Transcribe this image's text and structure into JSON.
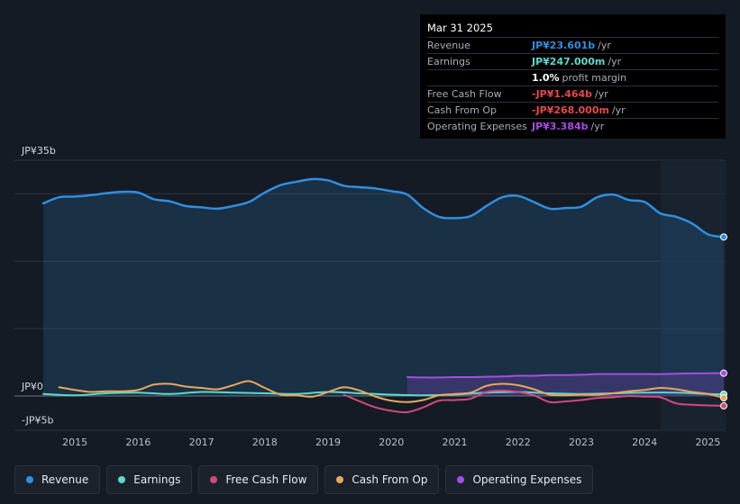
{
  "chart_data": {
    "type": "area",
    "title": "",
    "xlabel": "",
    "ylabel": "",
    "ylim": [
      -5,
      35
    ],
    "y_tick_labels": [
      {
        "value": 35,
        "label": "JP¥35b"
      },
      {
        "value": 0,
        "label": "JP¥0"
      },
      {
        "value": -5,
        "label": "-JP¥5b"
      }
    ],
    "x_ticks": [
      {
        "value": 2015,
        "label": "2015"
      },
      {
        "value": 2016,
        "label": "2016"
      },
      {
        "value": 2017,
        "label": "2017"
      },
      {
        "value": 2018,
        "label": "2018"
      },
      {
        "value": 2019,
        "label": "2019"
      },
      {
        "value": 2020,
        "label": "2020"
      },
      {
        "value": 2021,
        "label": "2021"
      },
      {
        "value": 2022,
        "label": "2022"
      },
      {
        "value": 2023,
        "label": "2023"
      },
      {
        "value": 2024,
        "label": "2024"
      },
      {
        "value": 2025,
        "label": "2025"
      }
    ],
    "xlim": [
      2014.0,
      2025.25
    ],
    "forecast_start": 2024.25,
    "series": [
      {
        "name": "Revenue",
        "color": "#2f8fe0",
        "filled": true,
        "x": [
          2014.5,
          2014.75,
          2015.0,
          2015.25,
          2015.5,
          2015.75,
          2016.0,
          2016.25,
          2016.5,
          2016.75,
          2017.0,
          2017.25,
          2017.5,
          2017.75,
          2018.0,
          2018.25,
          2018.5,
          2018.75,
          2019.0,
          2019.25,
          2019.5,
          2019.75,
          2020.0,
          2020.25,
          2020.5,
          2020.75,
          2021.0,
          2021.25,
          2021.5,
          2021.75,
          2022.0,
          2022.25,
          2022.5,
          2022.75,
          2023.0,
          2023.25,
          2023.5,
          2023.75,
          2024.0,
          2024.25,
          2024.5,
          2024.75,
          2025.0,
          2025.25
        ],
        "values": [
          28.6,
          29.5,
          29.6,
          29.8,
          30.1,
          30.3,
          30.2,
          29.2,
          28.9,
          28.2,
          28.0,
          27.8,
          28.2,
          28.8,
          30.2,
          31.3,
          31.8,
          32.2,
          32.0,
          31.2,
          31.0,
          30.8,
          30.4,
          29.9,
          27.9,
          26.6,
          26.4,
          26.7,
          28.2,
          29.5,
          29.7,
          28.8,
          27.8,
          27.9,
          28.1,
          29.5,
          29.9,
          29.1,
          28.8,
          27.1,
          26.6,
          25.6,
          24.0,
          23.6
        ]
      },
      {
        "name": "Earnings",
        "color": "#5fd8c9",
        "filled": false,
        "x": [
          2014.5,
          2015.0,
          2015.5,
          2016.0,
          2016.5,
          2017.0,
          2017.5,
          2018.0,
          2018.5,
          2019.0,
          2019.5,
          2020.0,
          2020.5,
          2021.0,
          2021.5,
          2022.0,
          2022.5,
          2023.0,
          2023.5,
          2024.0,
          2024.5,
          2025.0,
          2025.25
        ],
        "values": [
          0.3,
          0.1,
          0.4,
          0.5,
          0.3,
          0.6,
          0.5,
          0.4,
          0.3,
          0.6,
          0.4,
          0.2,
          0.1,
          0.2,
          0.5,
          0.6,
          0.4,
          0.3,
          0.4,
          0.5,
          0.5,
          0.3,
          0.25
        ]
      },
      {
        "name": "Free Cash Flow",
        "color": "#d14a7d",
        "filled": false,
        "x": [
          2019.25,
          2019.5,
          2019.75,
          2020.0,
          2020.25,
          2020.5,
          2020.75,
          2021.0,
          2021.25,
          2021.5,
          2021.75,
          2022.0,
          2022.25,
          2022.5,
          2022.75,
          2023.0,
          2023.25,
          2023.5,
          2023.75,
          2024.0,
          2024.25,
          2024.5,
          2024.75,
          2025.0,
          2025.25
        ],
        "values": [
          0.2,
          -0.8,
          -1.7,
          -2.2,
          -2.4,
          -1.7,
          -0.7,
          -0.6,
          -0.4,
          0.6,
          0.8,
          0.6,
          0.1,
          -0.9,
          -0.8,
          -0.6,
          -0.3,
          -0.2,
          0.0,
          -0.1,
          -0.2,
          -1.1,
          -1.3,
          -1.4,
          -1.46
        ]
      },
      {
        "name": "Cash From Op",
        "color": "#e8a75c",
        "filled": false,
        "x": [
          2014.75,
          2015.0,
          2015.25,
          2015.5,
          2015.75,
          2016.0,
          2016.25,
          2016.5,
          2016.75,
          2017.0,
          2017.25,
          2017.5,
          2017.75,
          2018.0,
          2018.25,
          2018.5,
          2018.75,
          2019.0,
          2019.25,
          2019.5,
          2019.75,
          2020.0,
          2020.25,
          2020.5,
          2020.75,
          2021.0,
          2021.25,
          2021.5,
          2021.75,
          2022.0,
          2022.25,
          2022.5,
          2022.75,
          2023.0,
          2023.25,
          2023.5,
          2023.75,
          2024.0,
          2024.25,
          2024.5,
          2024.75,
          2025.0,
          2025.25
        ],
        "values": [
          1.3,
          0.9,
          0.6,
          0.7,
          0.7,
          0.9,
          1.7,
          1.8,
          1.4,
          1.2,
          1.0,
          1.6,
          2.2,
          1.2,
          0.2,
          0.1,
          -0.1,
          0.6,
          1.3,
          0.8,
          -0.1,
          -0.7,
          -0.9,
          -0.6,
          0.1,
          0.3,
          0.5,
          1.5,
          1.8,
          1.6,
          1.0,
          0.2,
          0.1,
          0.2,
          0.2,
          0.4,
          0.7,
          0.9,
          1.2,
          1.0,
          0.6,
          0.3,
          -0.27
        ]
      },
      {
        "name": "Operating Expenses",
        "color": "#a64de6",
        "filled": true,
        "x": [
          2020.25,
          2020.5,
          2020.75,
          2021.0,
          2021.25,
          2021.5,
          2021.75,
          2022.0,
          2022.25,
          2022.5,
          2022.75,
          2023.0,
          2023.25,
          2023.5,
          2023.75,
          2024.0,
          2024.25,
          2024.5,
          2024.75,
          2025.0,
          2025.25
        ],
        "values": [
          2.8,
          2.75,
          2.75,
          2.8,
          2.8,
          2.85,
          2.9,
          3.0,
          3.0,
          3.1,
          3.1,
          3.15,
          3.25,
          3.25,
          3.25,
          3.25,
          3.25,
          3.3,
          3.35,
          3.38,
          3.384
        ]
      }
    ]
  },
  "tooltip": {
    "date": "Mar 31 2025",
    "rows": [
      {
        "label": "Revenue",
        "value": "JP¥23.601b",
        "unit": "/yr",
        "color": "#2f8fe0"
      },
      {
        "label": "Earnings",
        "value": "JP¥247.000m",
        "unit": "/yr",
        "color": "#5fd8c9"
      },
      {
        "label": "",
        "value": "1.0%",
        "unit": "profit margin",
        "color": "#ffffff"
      },
      {
        "label": "Free Cash Flow",
        "value": "-JP¥1.464b",
        "unit": "/yr",
        "color": "#e5484d"
      },
      {
        "label": "Cash From Op",
        "value": "-JP¥268.000m",
        "unit": "/yr",
        "color": "#e5484d"
      },
      {
        "label": "Operating Expenses",
        "value": "JP¥3.384b",
        "unit": "/yr",
        "color": "#a64de6"
      }
    ]
  },
  "legend": [
    {
      "label": "Revenue",
      "color": "#2f8fe0"
    },
    {
      "label": "Earnings",
      "color": "#5fd8c9"
    },
    {
      "label": "Free Cash Flow",
      "color": "#d14a7d"
    },
    {
      "label": "Cash From Op",
      "color": "#e8a75c"
    },
    {
      "label": "Operating Expenses",
      "color": "#a64de6"
    }
  ]
}
